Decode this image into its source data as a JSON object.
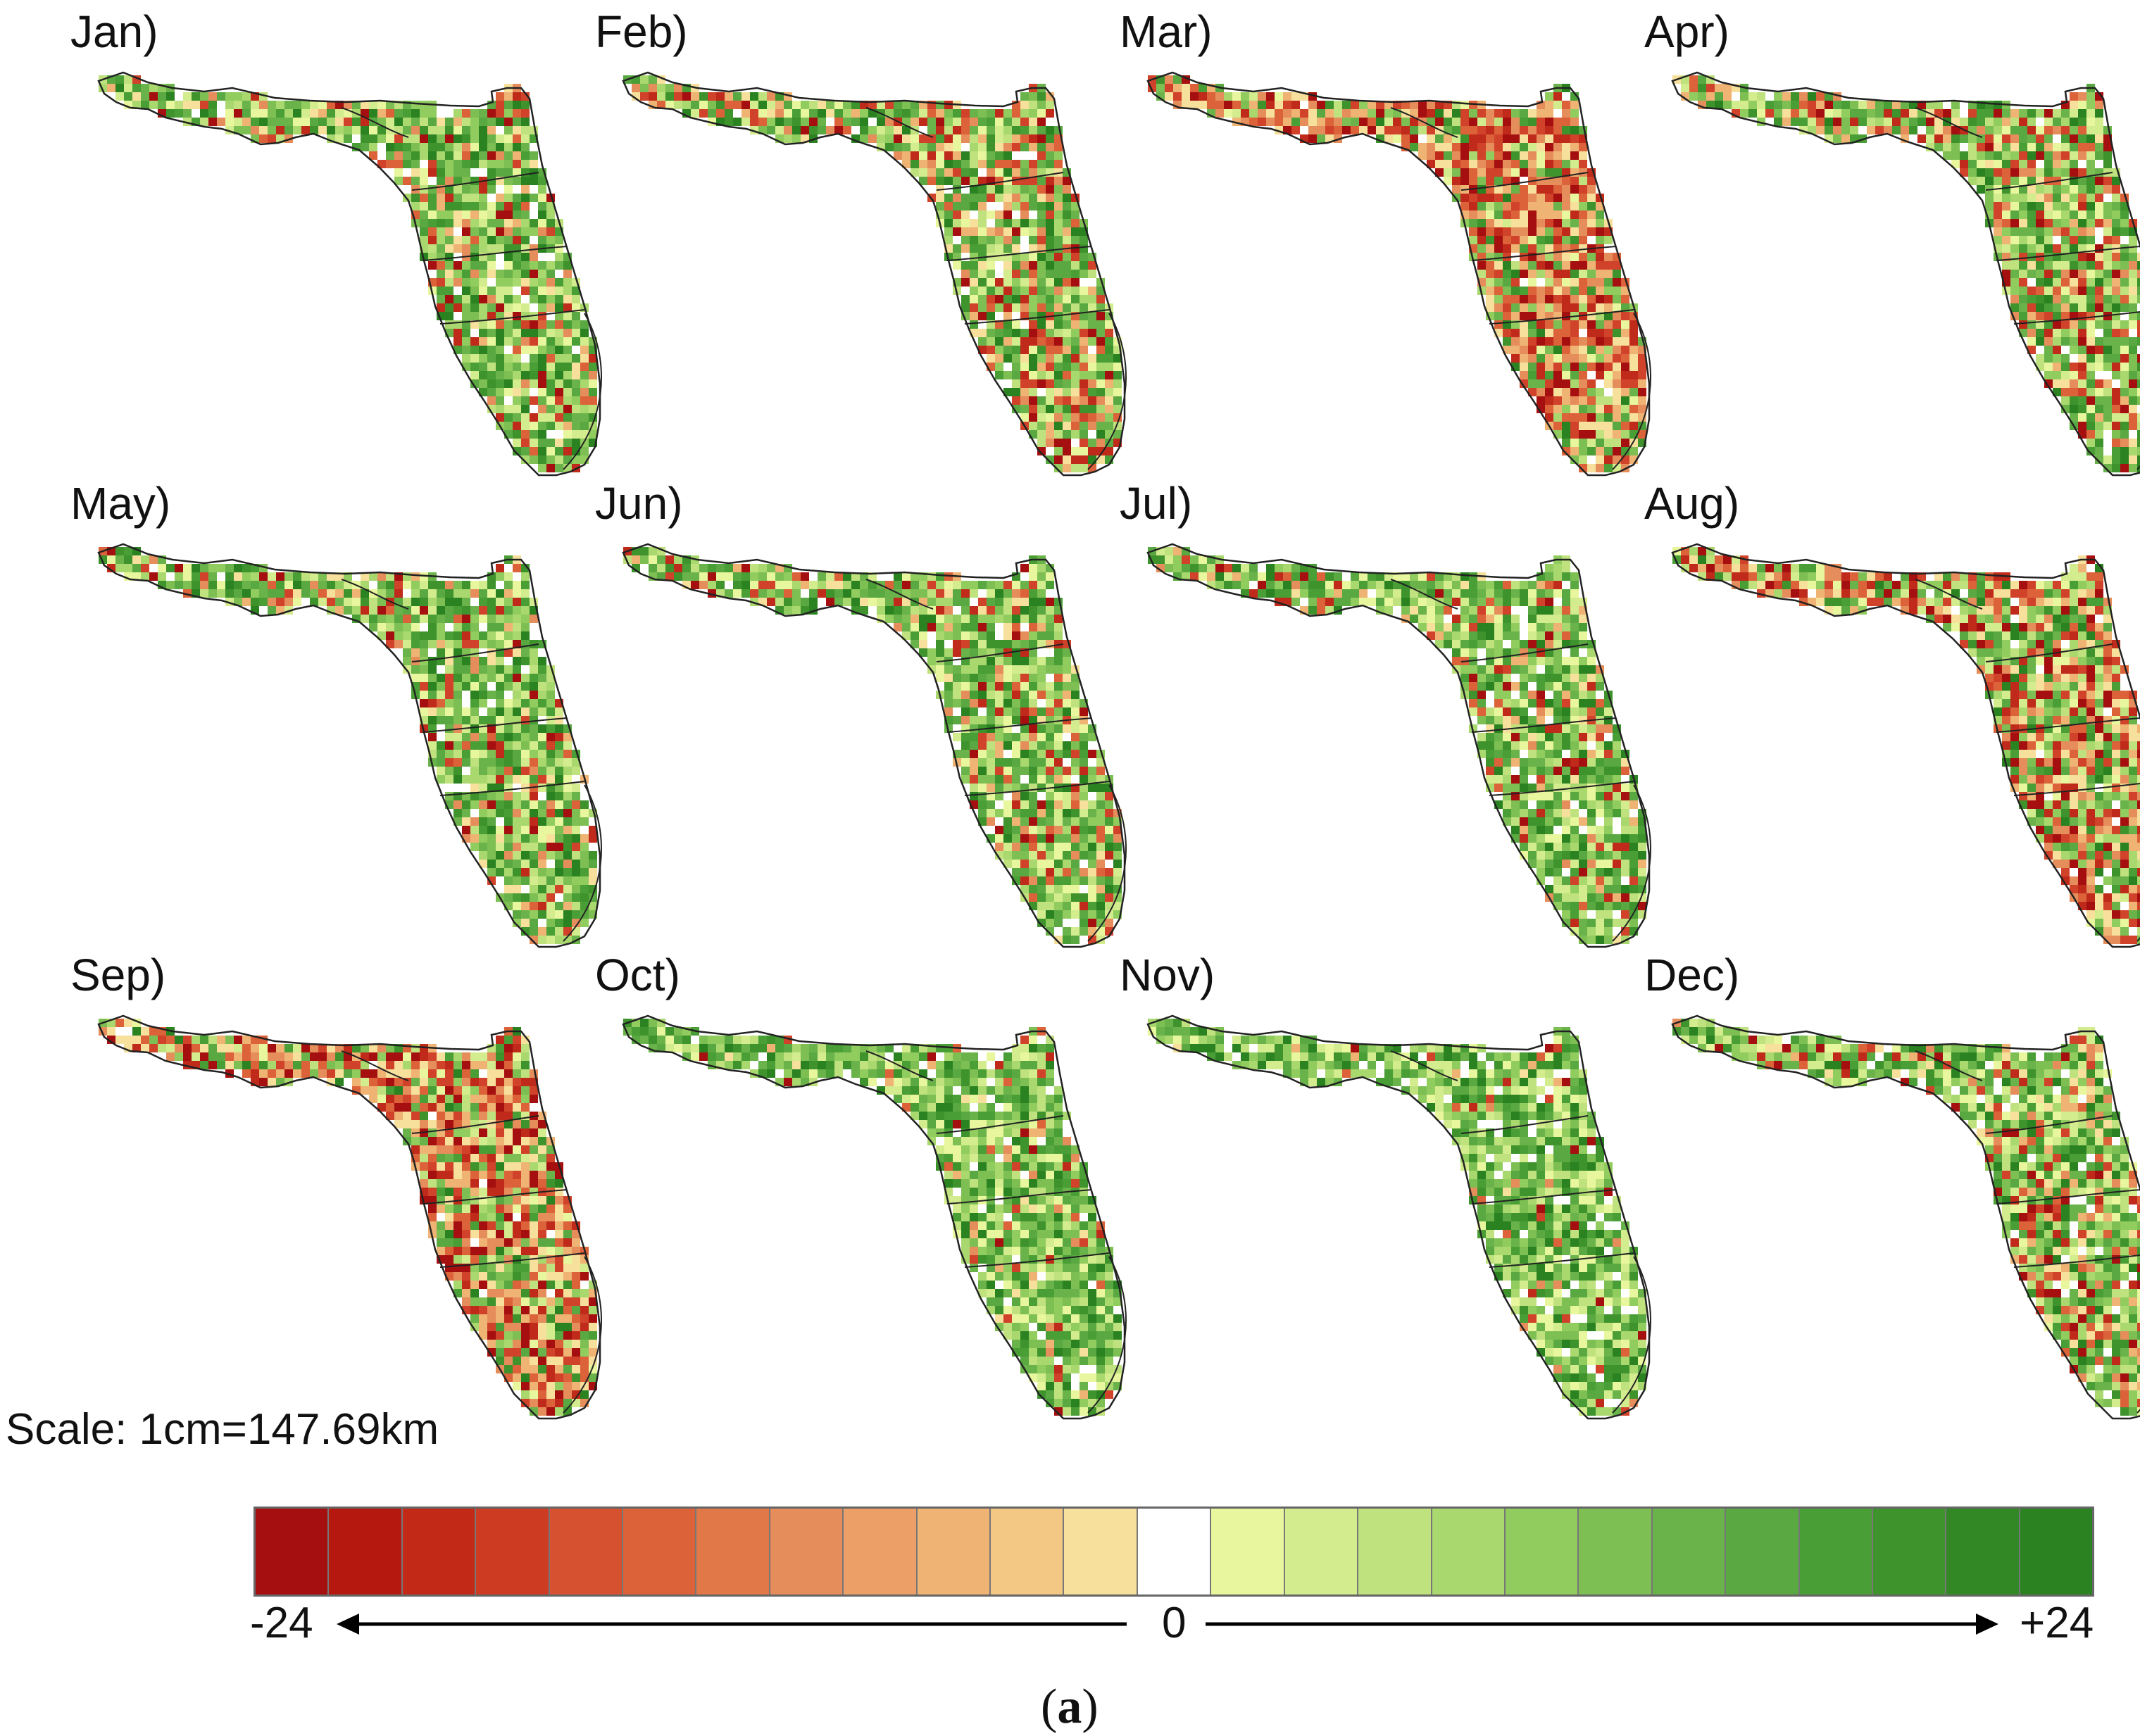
{
  "months": [
    {
      "label": "Jan)",
      "red_fraction": 0.22
    },
    {
      "label": "Feb)",
      "red_fraction": 0.38
    },
    {
      "label": "Mar)",
      "red_fraction": 0.72
    },
    {
      "label": "Apr)",
      "red_fraction": 0.32
    },
    {
      "label": "May)",
      "red_fraction": 0.2
    },
    {
      "label": "Jun)",
      "red_fraction": 0.24
    },
    {
      "label": "Jul)",
      "red_fraction": 0.16
    },
    {
      "label": "Aug)",
      "red_fraction": 0.55
    },
    {
      "label": "Sep)",
      "red_fraction": 0.62
    },
    {
      "label": "Oct)",
      "red_fraction": 0.1
    },
    {
      "label": "Nov)",
      "red_fraction": 0.07
    },
    {
      "label": "Dec)",
      "red_fraction": 0.28
    }
  ],
  "scale_text": "Scale: 1cm=147.69km",
  "legend": {
    "min_label": "-24",
    "mid_label": "0",
    "max_label": "+24",
    "colors": [
      "#a50f0f",
      "#b4180f",
      "#c22a17",
      "#cc3b22",
      "#d65130",
      "#dc6239",
      "#e07848",
      "#e68d5c",
      "#ec9f67",
      "#efb374",
      "#f3c784",
      "#f6e09b",
      "#ffffff",
      "#e8f79e",
      "#d3ec8e",
      "#bfe27e",
      "#a9d86e",
      "#91cc5e",
      "#7ebf54",
      "#6ab34a",
      "#5aa841",
      "#4a9e36",
      "#3e932d",
      "#318824",
      "#2a8221"
    ]
  },
  "panel_caption": {
    "paren_open": "(",
    "letter": "a",
    "paren_close": ")"
  }
}
